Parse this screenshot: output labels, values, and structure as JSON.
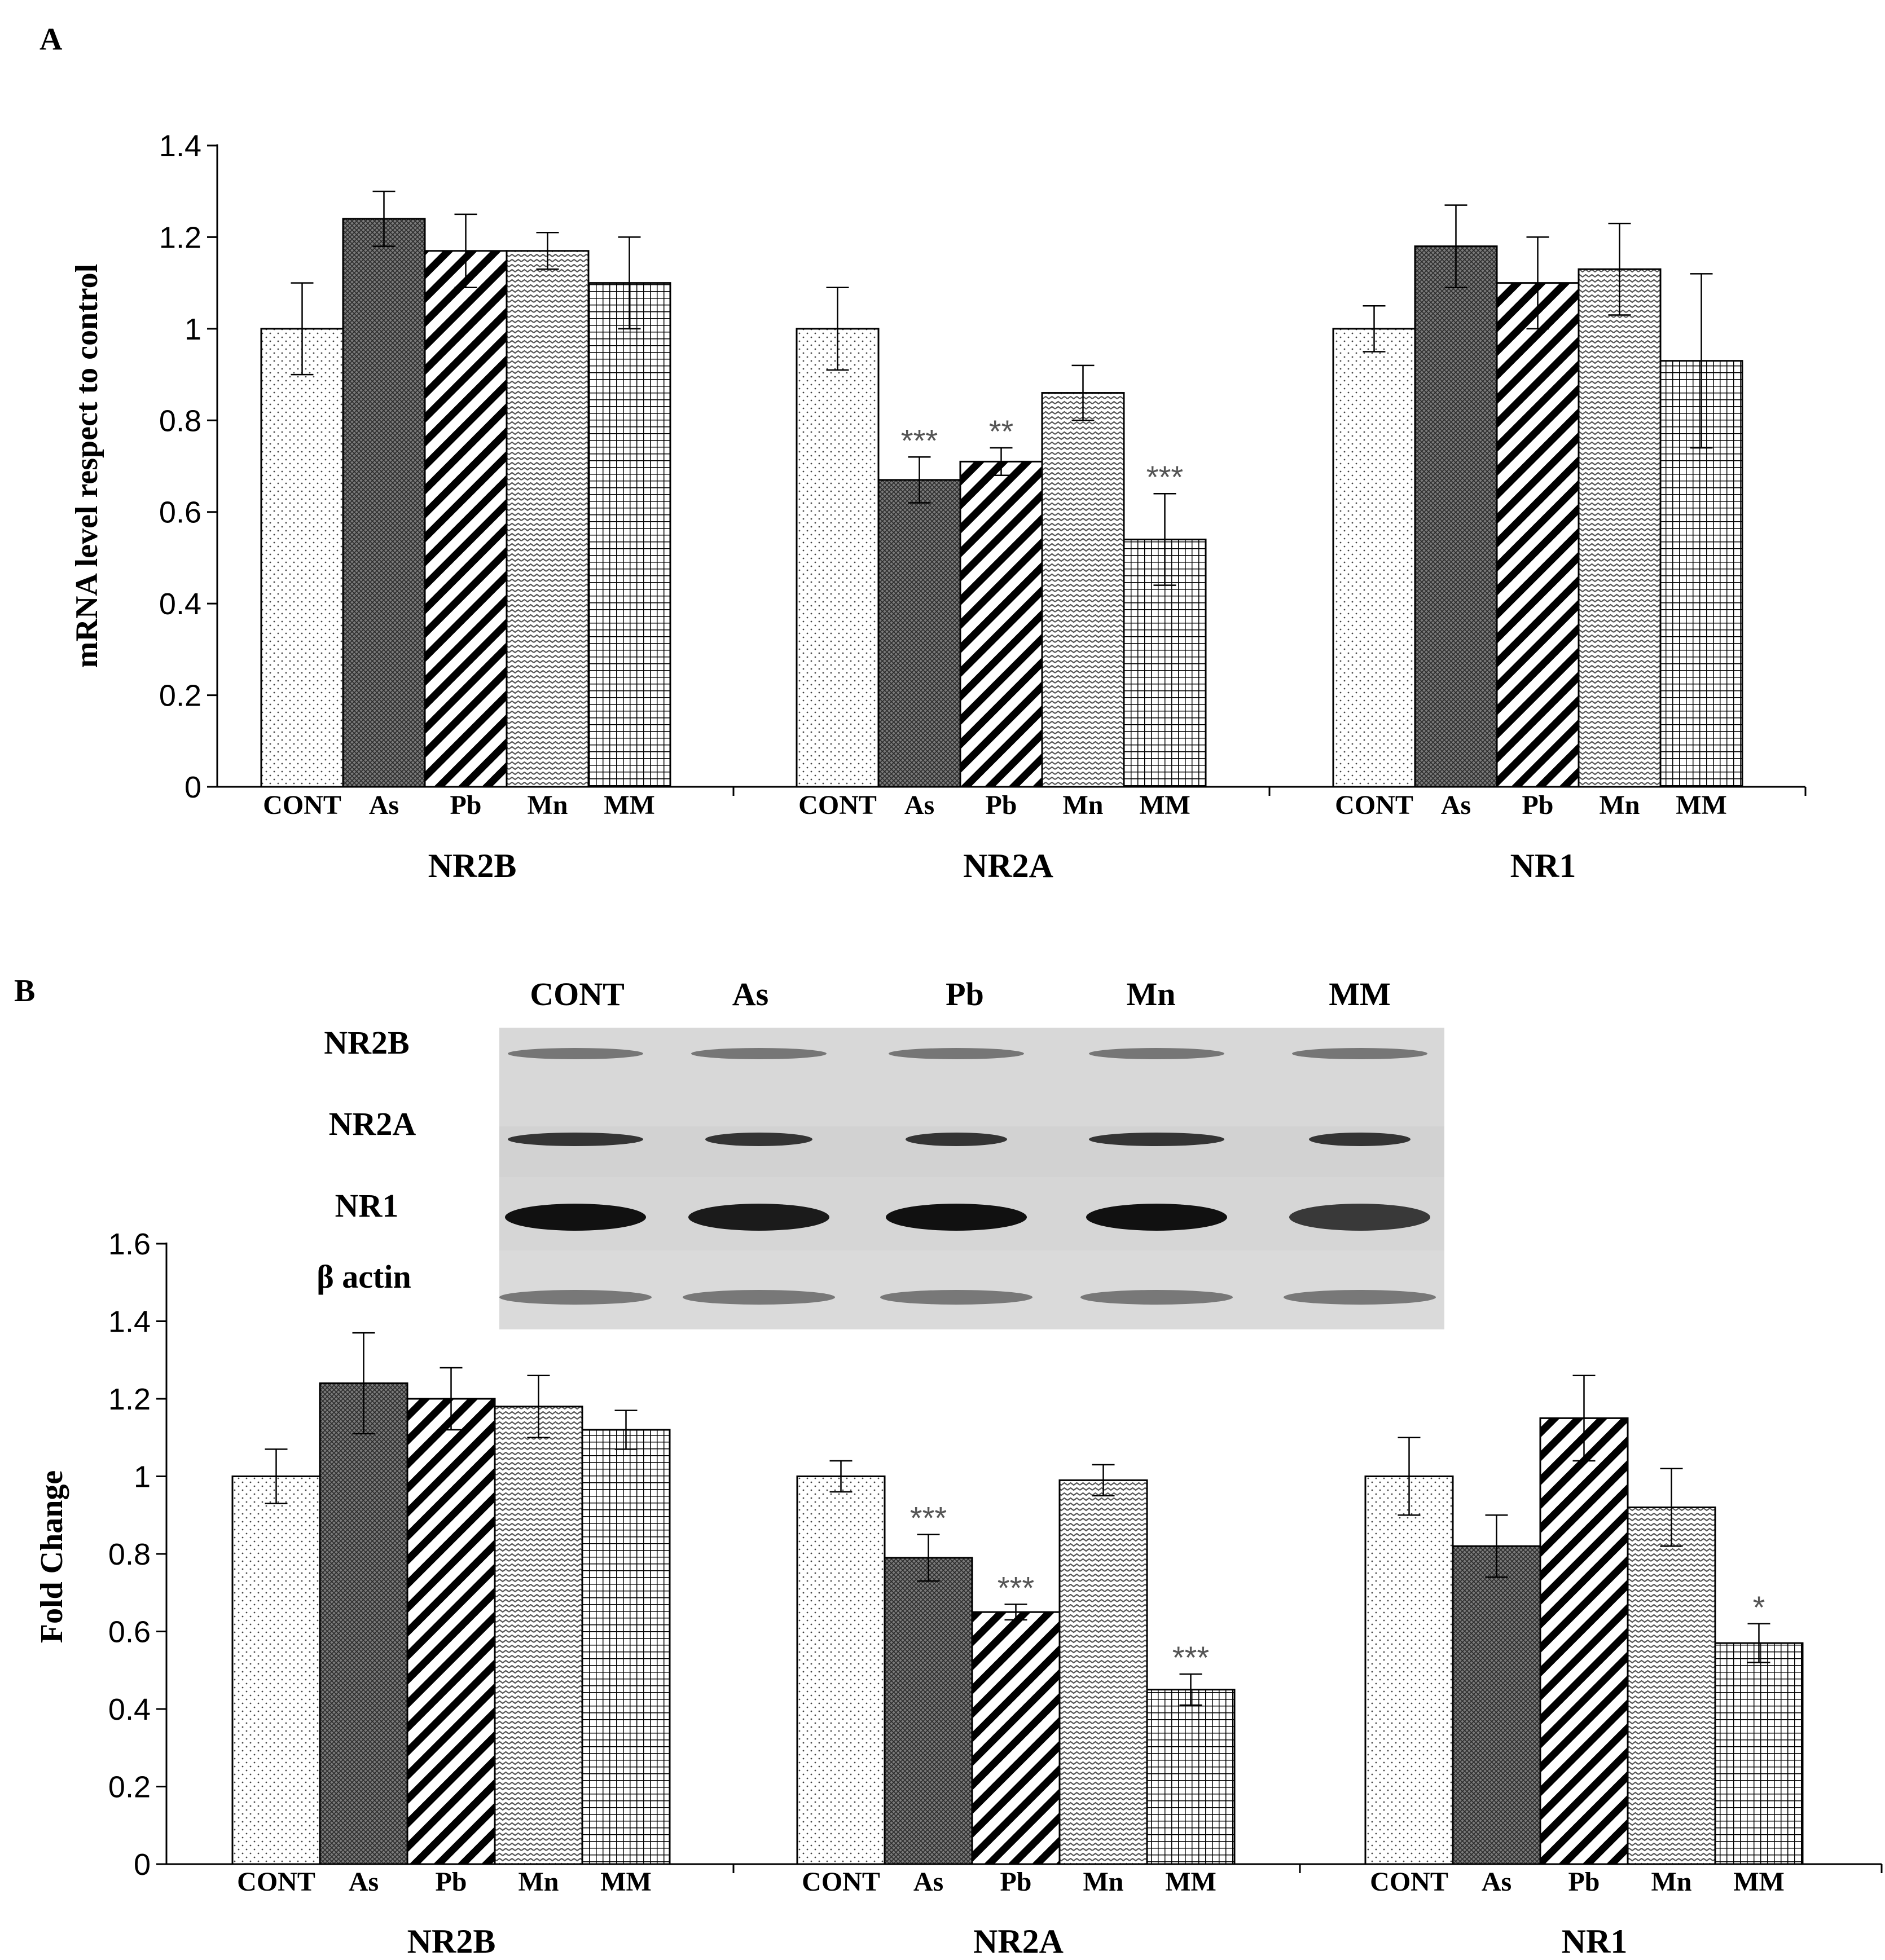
{
  "panels": {
    "a_label": "A",
    "b_label": "B"
  },
  "blot": {
    "lanes": [
      "CONT",
      "As",
      "Pb",
      "Mn",
      "MM"
    ],
    "rows": [
      "NR2B",
      "NR2A",
      "NR1",
      "β actin"
    ]
  },
  "colors": {
    "bar_stroke": "#000000",
    "sig_text": "#555555"
  },
  "chart_data": [
    {
      "type": "bar",
      "title": "",
      "xlabel": "",
      "ylabel": "mRNA level respect to control",
      "ylim": [
        0,
        1.4
      ],
      "yticks": [
        "0",
        "0.2",
        "0.4",
        "0.6",
        "0.8",
        "1",
        "1.2",
        "1.4"
      ],
      "groups": [
        "NR2B",
        "NR2A",
        "NR1"
      ],
      "categories": [
        "CONT",
        "As",
        "Pb",
        "Mn",
        "MM"
      ],
      "series": [
        {
          "values": [
            1.0,
            1.24,
            1.17,
            1.17,
            1.1
          ],
          "errors": [
            0.1,
            0.06,
            0.08,
            0.04,
            0.1
          ],
          "sig": [
            "",
            "",
            "",
            "",
            ""
          ]
        },
        {
          "values": [
            1.0,
            0.67,
            0.71,
            0.86,
            0.54
          ],
          "errors": [
            0.09,
            0.05,
            0.03,
            0.06,
            0.1
          ],
          "sig": [
            "",
            "***",
            "**",
            "",
            "***"
          ]
        },
        {
          "values": [
            1.0,
            1.18,
            1.1,
            1.13,
            0.93
          ],
          "errors": [
            0.05,
            0.09,
            0.1,
            0.1,
            0.19
          ],
          "sig": [
            "",
            "",
            "",
            "",
            ""
          ]
        }
      ],
      "grid": false
    },
    {
      "type": "bar",
      "title": "",
      "xlabel": "",
      "ylabel": "Fold Change",
      "ylim": [
        0,
        1.6
      ],
      "yticks": [
        "0",
        "0.2",
        "0.4",
        "0.6",
        "0.8",
        "1",
        "1.2",
        "1.4",
        "1.6"
      ],
      "groups": [
        "NR2B",
        "NR2A",
        "NR1"
      ],
      "categories": [
        "CONT",
        "As",
        "Pb",
        "Mn",
        "MM"
      ],
      "series": [
        {
          "values": [
            1.0,
            1.24,
            1.2,
            1.18,
            1.12
          ],
          "errors": [
            0.07,
            0.13,
            0.08,
            0.08,
            0.05
          ],
          "sig": [
            "",
            "",
            "",
            "",
            ""
          ]
        },
        {
          "values": [
            1.0,
            0.79,
            0.65,
            0.99,
            0.45
          ],
          "errors": [
            0.04,
            0.06,
            0.02,
            0.04,
            0.04
          ],
          "sig": [
            "",
            "***",
            "***",
            "",
            "***"
          ]
        },
        {
          "values": [
            1.0,
            0.82,
            1.15,
            0.92,
            0.57
          ],
          "errors": [
            0.1,
            0.08,
            0.11,
            0.1,
            0.05
          ],
          "sig": [
            "",
            "",
            "",
            "",
            "*"
          ]
        }
      ],
      "grid": false
    }
  ]
}
